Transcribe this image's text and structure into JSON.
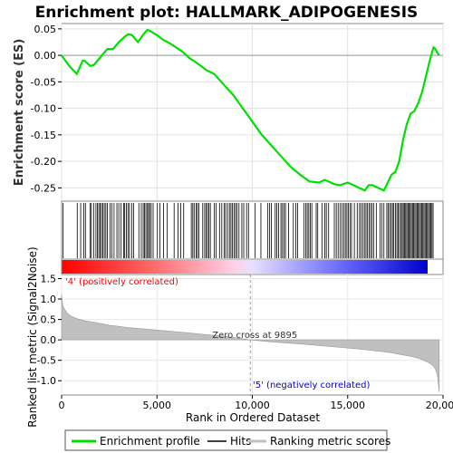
{
  "chart_data": {
    "type": "line",
    "title": "Enrichment plot: HALLMARK_ADIPOGENESIS",
    "xlabel": "Rank in Ordered Dataset",
    "top_panel": {
      "ylabel": "Enrichment score (ES)",
      "ylim": [
        -0.275,
        0.06
      ],
      "yticks": [
        0.05,
        0.0,
        -0.05,
        -0.1,
        -0.15,
        -0.2,
        -0.25
      ],
      "ytick_labels": [
        "0.05",
        "0.00",
        "-0.05",
        "-0.10",
        "-0.15",
        "-0.20",
        "-0.25"
      ],
      "series": [
        {
          "name": "Enrichment profile",
          "color": "#00e000",
          "x": [
            0,
            400,
            800,
            1100,
            1200,
            1500,
            1700,
            2000,
            2400,
            2700,
            3000,
            3300,
            3500,
            3700,
            4000,
            4300,
            4500,
            4700,
            5000,
            5300,
            5700,
            6000,
            6300,
            6700,
            7000,
            7300,
            7600,
            8000,
            8500,
            9000,
            9500,
            10000,
            10500,
            11000,
            11500,
            12000,
            12500,
            13000,
            13500,
            13800,
            14000,
            14300,
            14600,
            15000,
            15300,
            15600,
            15900,
            16100,
            16300,
            16600,
            16900,
            17100,
            17300,
            17500,
            17700,
            17900,
            18100,
            18300,
            18500,
            18700,
            18900,
            19100,
            19300,
            19500,
            19600,
            19700,
            19800
          ],
          "y": [
            0.0,
            -0.02,
            -0.035,
            -0.01,
            -0.01,
            -0.02,
            -0.018,
            -0.005,
            0.012,
            0.012,
            0.025,
            0.035,
            0.04,
            0.038,
            0.025,
            0.04,
            0.048,
            0.045,
            0.038,
            0.03,
            0.022,
            0.015,
            0.008,
            -0.005,
            -0.012,
            -0.02,
            -0.028,
            -0.035,
            -0.055,
            -0.075,
            -0.1,
            -0.125,
            -0.15,
            -0.17,
            -0.19,
            -0.21,
            -0.225,
            -0.238,
            -0.24,
            -0.235,
            -0.238,
            -0.243,
            -0.245,
            -0.24,
            -0.245,
            -0.25,
            -0.255,
            -0.245,
            -0.245,
            -0.25,
            -0.255,
            -0.24,
            -0.225,
            -0.22,
            -0.2,
            -0.16,
            -0.13,
            -0.11,
            -0.105,
            -0.09,
            -0.07,
            -0.04,
            -0.01,
            0.015,
            0.012,
            0.005,
            0.0
          ]
        }
      ]
    },
    "hits_panel": {
      "name": "Hits",
      "hits": [
        80,
        820,
        1000,
        1160,
        1250,
        1490,
        1560,
        1680,
        1800,
        1880,
        1950,
        2020,
        2090,
        2160,
        2240,
        2320,
        2400,
        2540,
        2630,
        2750,
        2900,
        3000,
        3120,
        3250,
        3310,
        3400,
        3480,
        3560,
        3680,
        3780,
        4050,
        4180,
        4280,
        4350,
        4420,
        4500,
        4560,
        4620,
        4700,
        4800,
        5020,
        5150,
        5340,
        5540,
        5900,
        6100,
        6250,
        6400,
        6800,
        6880,
        6950,
        7050,
        7120,
        7200,
        7400,
        7500,
        7580,
        7650,
        7720,
        7800,
        8000,
        8100,
        8280,
        8400,
        8520,
        8600,
        8700,
        8800,
        8880,
        8960,
        9040,
        9120,
        9200,
        9300,
        9450,
        9550,
        9700,
        9800,
        10150,
        10450,
        10800,
        10900,
        11000,
        11200,
        11280,
        11380,
        11500,
        11580,
        11660,
        11740,
        11900,
        12150,
        12280,
        12380,
        12700,
        12800,
        12880,
        12960,
        13040,
        13120,
        13350,
        13430,
        13650,
        13800,
        13880,
        14000,
        14300,
        14400,
        14500,
        14600,
        14700,
        14800,
        14880,
        14960,
        15040,
        15120,
        15200,
        15350,
        15500,
        15620,
        15700,
        15800,
        15880,
        15960,
        16040,
        16120,
        16200,
        16280,
        16360,
        16500,
        16700,
        16800,
        16900,
        17050,
        17120,
        17200,
        17280,
        17350,
        17420,
        17500,
        17580,
        17650,
        17720,
        17800,
        17860,
        17920,
        17980,
        18040,
        18100,
        18160,
        18220,
        18280,
        18340,
        18400,
        18460,
        18520,
        18580,
        18640,
        18700,
        18760,
        18820,
        18880,
        18940,
        19000,
        19060,
        19120,
        19180,
        19240,
        19300,
        19360,
        19420,
        19480
      ]
    },
    "gradient_bar": {
      "positive_color": "#ff0000",
      "negative_color": "#0000cc"
    },
    "bottom_panel": {
      "ylabel": "Ranked list metric (Signal2Noise)",
      "ylim": [
        -1.35,
        1.6
      ],
      "yticks": [
        1.5,
        1.0,
        0.5,
        0.0,
        -0.5,
        -1.0
      ],
      "ytick_labels": [
        "1.5",
        "1.0",
        "0.5",
        "0.0",
        "-0.5",
        "-1.0"
      ],
      "series": [
        {
          "name": "Ranking metric scores",
          "color": "#c0c0c0",
          "x": [
            0,
            30,
            80,
            150,
            300,
            500,
            800,
            1200,
            1800,
            2500,
            3500,
            5000,
            6500,
            8000,
            9000,
            9895,
            11000,
            12500,
            14000,
            15500,
            16500,
            17200,
            17800,
            18300,
            18700,
            19000,
            19300,
            19500,
            19600,
            19700,
            19750,
            19800
          ],
          "y": [
            1.12,
            0.95,
            0.82,
            0.75,
            0.65,
            0.58,
            0.52,
            0.47,
            0.42,
            0.36,
            0.3,
            0.24,
            0.18,
            0.11,
            0.06,
            0.0,
            -0.05,
            -0.1,
            -0.16,
            -0.22,
            -0.27,
            -0.31,
            -0.36,
            -0.4,
            -0.45,
            -0.5,
            -0.57,
            -0.64,
            -0.72,
            -0.85,
            -1.05,
            -1.28
          ]
        }
      ],
      "annotations": {
        "zero_cross": "Zero cross at 9895",
        "zero_cross_x": 9895,
        "positive_label": "'4' (positively correlated)",
        "negative_label": "'5' (negatively correlated)",
        "positive_color": "#ff0000",
        "negative_color": "#0000cc"
      }
    },
    "xlim": [
      0,
      20000
    ],
    "xticks": [
      0,
      5000,
      10000,
      15000,
      20000
    ],
    "xtick_labels": [
      "0",
      "5,000",
      "10,000",
      "15,000",
      "20,000"
    ],
    "grid": true,
    "legend_position": "bottom",
    "legend": [
      {
        "label": "Enrichment profile",
        "color": "#00e000"
      },
      {
        "label": "Hits",
        "color": "#000000"
      },
      {
        "label": "Ranking metric scores",
        "color": "#c0c0c0"
      }
    ]
  }
}
